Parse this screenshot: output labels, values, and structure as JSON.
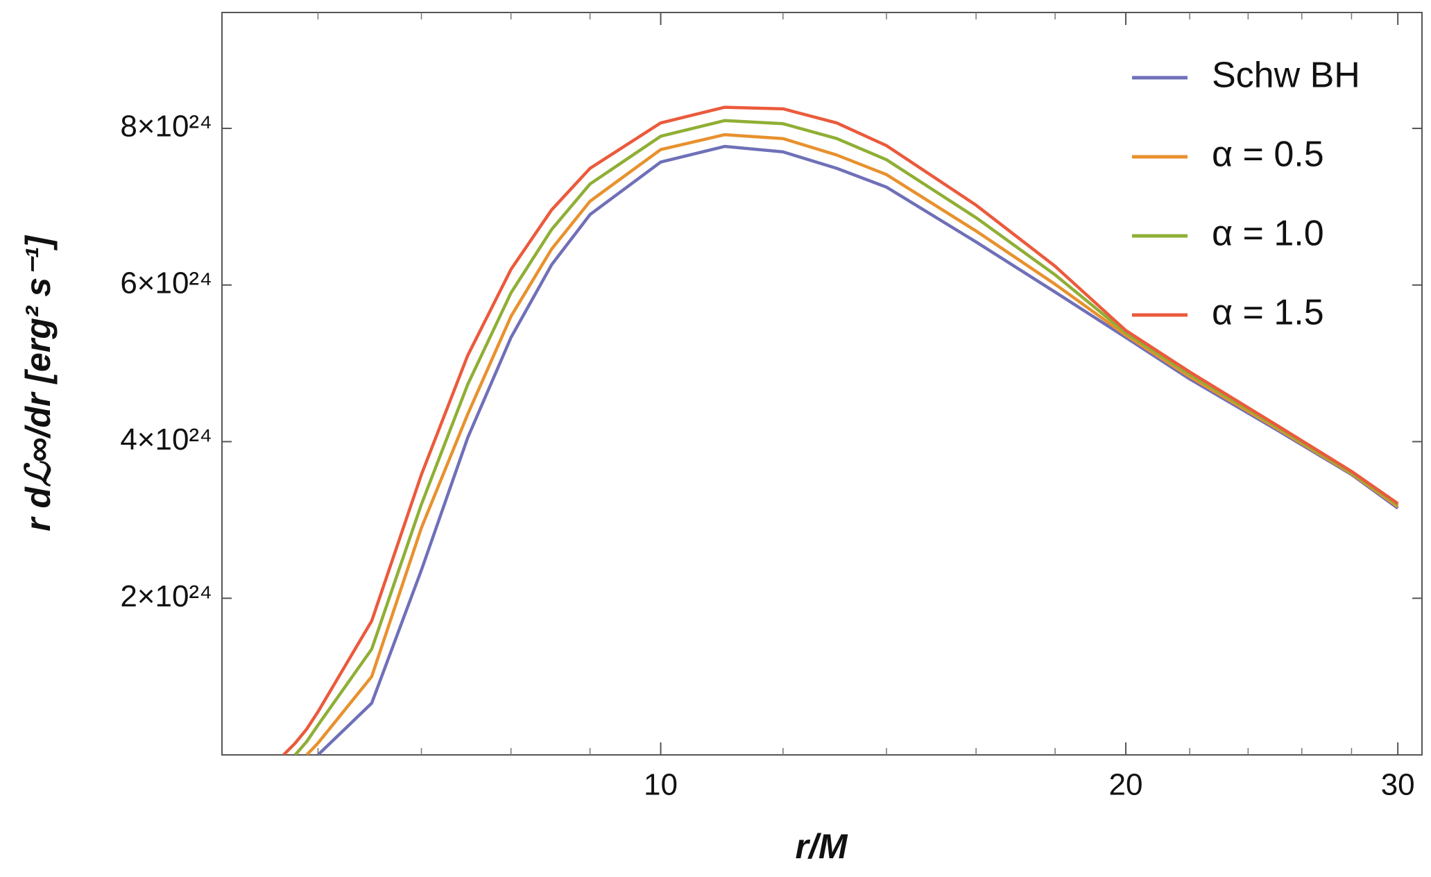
{
  "chart_data": {
    "type": "line",
    "xlabel": "r/M",
    "ylabel": "r dℒ∞/dr  [erg² s⁻¹]",
    "xscale": "log",
    "xlim": [
      5.2,
      31.1
    ],
    "ylim": [
      0,
      9.48e+24
    ],
    "xticks": [
      10,
      20,
      30
    ],
    "xminorticks": [
      6,
      7,
      8,
      9,
      12,
      14,
      16,
      18,
      22,
      24,
      26,
      28
    ],
    "yticks": [
      {
        "value": 2e+24,
        "label": "2×10²⁴"
      },
      {
        "value": 4e+24,
        "label": "4×10²⁴"
      },
      {
        "value": 6e+24,
        "label": "6×10²⁴"
      },
      {
        "value": 8e+24,
        "label": "8×10²⁴"
      }
    ],
    "legend": "top-right",
    "x": [
      5.7,
      5.8,
      5.9,
      6,
      6.5,
      7,
      7.5,
      8,
      8.5,
      9,
      10,
      11,
      12,
      13,
      14,
      16,
      18,
      20,
      22,
      25,
      28,
      30
    ],
    "series": [
      {
        "name": "Schw BH",
        "color": "#6f70b8",
        "values": [
          null,
          null,
          null,
          0,
          6.6e+23,
          2.36e+24,
          4.05e+24,
          5.33e+24,
          6.26e+24,
          6.9e+24,
          7.57e+24,
          7.77e+24,
          7.7e+24,
          7.49e+24,
          7.25e+24,
          6.55e+24,
          5.91e+24,
          5.33e+24,
          4.8e+24,
          4.16e+24,
          3.58e+24,
          3.15e+24
        ]
      },
      {
        "name": "α = 0.5",
        "color": "#e8912e",
        "values": [
          null,
          null,
          0,
          1.5e+23,
          1e+24,
          2.9e+24,
          4.35e+24,
          5.6e+24,
          6.46e+24,
          7.07e+24,
          7.73e+24,
          7.92e+24,
          7.87e+24,
          7.66e+24,
          7.41e+24,
          6.69e+24,
          6.01e+24,
          5.36e+24,
          4.83e+24,
          4.18e+24,
          3.59e+24,
          3.17e+24
        ]
      },
      {
        "name": "α = 1.0",
        "color": "#8faf35",
        "values": [
          null,
          0,
          1.7e+23,
          3.8e+23,
          1.35e+24,
          3.2e+24,
          4.73e+24,
          5.9e+24,
          6.71e+24,
          7.29e+24,
          7.9e+24,
          8.1e+24,
          8.06e+24,
          7.87e+24,
          7.6e+24,
          6.86e+24,
          6.13e+24,
          5.39e+24,
          4.86e+24,
          4.2e+24,
          3.6e+24,
          3.19e+24
        ]
      },
      {
        "name": "α = 1.5",
        "color": "#eb5a3c",
        "values": [
          0,
          1.5e+23,
          3.3e+23,
          5.5e+23,
          1.71e+24,
          3.58e+24,
          5.1e+24,
          6.2e+24,
          6.96e+24,
          7.49e+24,
          8.07e+24,
          8.27e+24,
          8.25e+24,
          8.07e+24,
          7.78e+24,
          7.02e+24,
          6.24e+24,
          5.42e+24,
          4.89e+24,
          4.22e+24,
          3.62e+24,
          3.21e+24
        ]
      }
    ]
  }
}
